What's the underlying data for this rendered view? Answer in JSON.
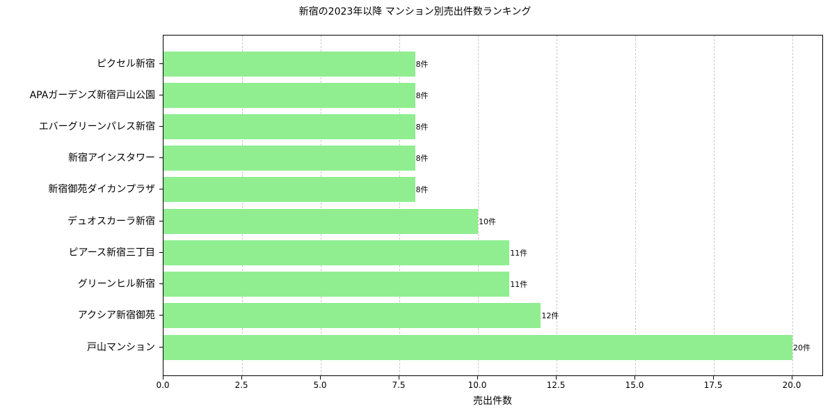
{
  "chart_data": {
    "type": "bar",
    "orientation": "horizontal",
    "title": "新宿の2023年以降 マンション別売出件数ランキング",
    "xlabel": "売出件数",
    "ylabel": "",
    "xlim": [
      0,
      21
    ],
    "xticks": [
      "0.0",
      "2.5",
      "5.0",
      "7.5",
      "10.0",
      "12.5",
      "15.0",
      "17.5",
      "20.0"
    ],
    "grid": "x-dashed",
    "bar_color": "#90ee90",
    "categories": [
      "ピクセル新宿",
      "APAガーデンズ新宿戸山公園",
      "エバーグリーンパレス新宿",
      "新宿アインスタワー",
      "新宿御苑ダイカンプラザ",
      "デュオスカーラ新宿",
      "ピアース新宿三丁目",
      "グリーンヒル新宿",
      "アクシア新宿御苑",
      "戸山マンション"
    ],
    "values": [
      8,
      8,
      8,
      8,
      8,
      10,
      11,
      11,
      12,
      20
    ],
    "data_labels": [
      "8件",
      "8件",
      "8件",
      "8件",
      "8件",
      "10件",
      "11件",
      "11件",
      "12件",
      "20件"
    ]
  }
}
